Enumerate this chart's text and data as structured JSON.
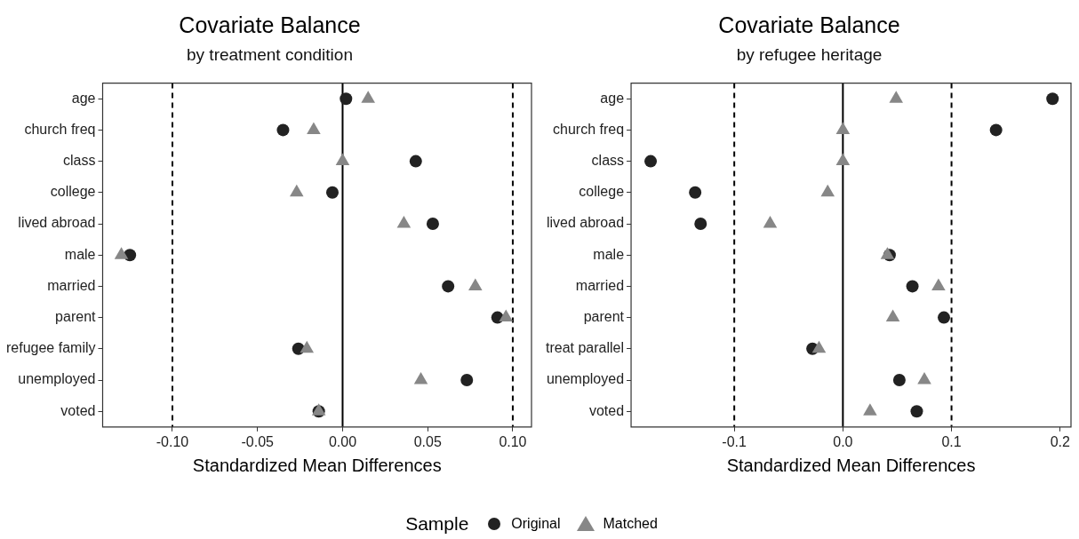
{
  "chart_data": [
    {
      "type": "scatter",
      "orientation": "horizontal",
      "title": "Covariate Balance",
      "subtitle": "by treatment condition",
      "xlabel": "Standardized Mean Differences",
      "legend_title": "Sample",
      "legend": "bottom",
      "categories": [
        "age",
        "church freq",
        "class",
        "college",
        "lived abroad",
        "male",
        "married",
        "parent",
        "refugee family",
        "unemployed",
        "voted"
      ],
      "series": [
        {
          "name": "Original",
          "color": "#222222",
          "marker": "circle",
          "values": [
            0.002,
            -0.035,
            0.043,
            -0.006,
            0.053,
            -0.125,
            0.062,
            0.091,
            -0.026,
            0.073,
            -0.014
          ]
        },
        {
          "name": "Matched",
          "color": "#878787",
          "marker": "triangle",
          "values": [
            0.015,
            -0.017,
            0.0,
            -0.027,
            0.036,
            -0.13,
            0.078,
            0.096,
            -0.021,
            0.046,
            -0.014
          ]
        }
      ],
      "xlim": [
        -0.141,
        0.111
      ],
      "xticks": [
        {
          "value": -0.1,
          "label": "-0.10"
        },
        {
          "value": -0.05,
          "label": "-0.05"
        },
        {
          "value": 0,
          "label": "0.00"
        },
        {
          "value": 0.05,
          "label": "0.05"
        },
        {
          "value": 0.1,
          "label": "0.10"
        }
      ],
      "ref_lines": [
        {
          "axis": "x",
          "value": -0.1,
          "line_style": "dashed"
        },
        {
          "axis": "x",
          "value": 0,
          "line_style": "solid"
        },
        {
          "axis": "x",
          "value": 0.1,
          "line_style": "dashed"
        }
      ],
      "grid": false
    },
    {
      "type": "scatter",
      "orientation": "horizontal",
      "title": "Covariate Balance",
      "subtitle": "by refugee heritage",
      "xlabel": "Standardized Mean Differences",
      "categories": [
        "age",
        "church freq",
        "class",
        "college",
        "lived abroad",
        "male",
        "married",
        "parent",
        "treat parallel",
        "unemployed",
        "voted"
      ],
      "series": [
        {
          "color": "#222222",
          "marker": "circle",
          "values": [
            0.193,
            0.141,
            -0.177,
            -0.136,
            -0.131,
            0.043,
            0.064,
            0.093,
            -0.028,
            0.052,
            0.068
          ]
        },
        {
          "color": "#878787",
          "marker": "triangle",
          "values": [
            0.049,
            0.0,
            0.0,
            -0.014,
            -0.067,
            0.041,
            0.088,
            0.046,
            -0.022,
            0.075,
            0.025
          ]
        }
      ],
      "xlim": [
        -0.195,
        0.21
      ],
      "xticks": [
        {
          "value": -0.1,
          "label": "-0.1"
        },
        {
          "value": 0,
          "label": "0.0"
        },
        {
          "value": 0.1,
          "label": "0.1"
        },
        {
          "value": 0.2,
          "label": "0.2"
        }
      ],
      "ref_lines": [
        {
          "axis": "x",
          "value": -0.1,
          "line_style": "dashed"
        },
        {
          "axis": "x",
          "value": 0,
          "line_style": "solid"
        },
        {
          "axis": "x",
          "value": 0.1,
          "line_style": "dashed"
        }
      ],
      "grid": false
    }
  ]
}
